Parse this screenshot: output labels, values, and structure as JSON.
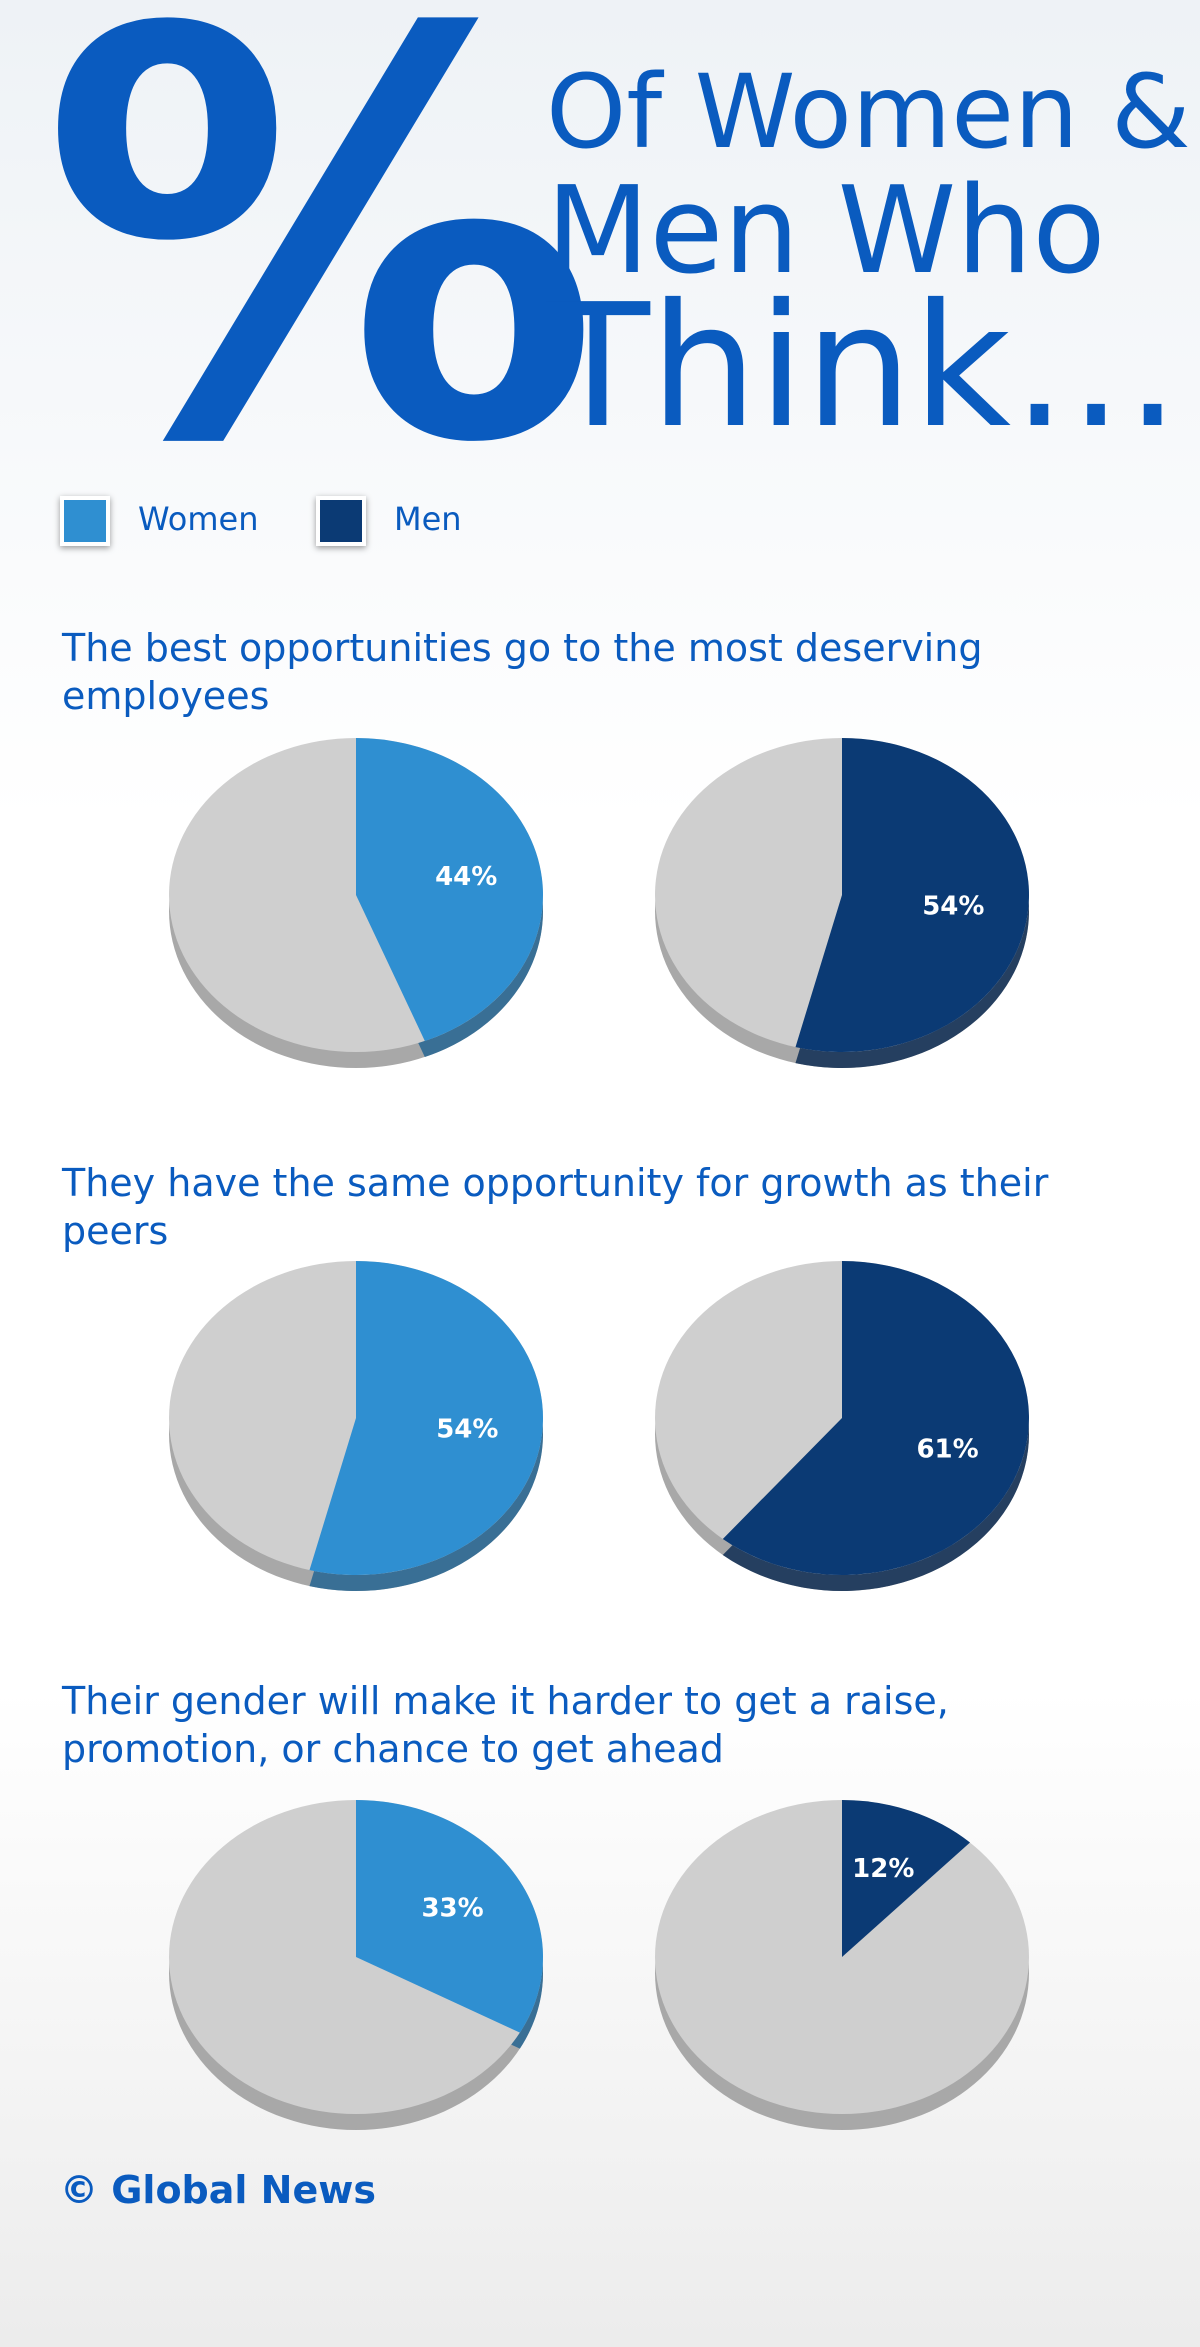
{
  "header": {
    "symbol": "%",
    "lines": [
      "Of Women &",
      "Men Who",
      "Think…"
    ]
  },
  "legend": [
    {
      "name": "Women",
      "color": "#2f8fd1"
    },
    {
      "name": "Men",
      "color": "#0b3a74"
    }
  ],
  "chart_data": [
    {
      "type": "pie",
      "title": "The best opportunities go to the most deserving employees",
      "values": [
        44,
        54
      ],
      "value_labels": [
        "44%",
        "54%"
      ]
    },
    {
      "type": "pie",
      "title": "They have the same opportunity for growth as their peers",
      "values": [
        54,
        61
      ],
      "value_labels": [
        "54%",
        "61%"
      ]
    },
    {
      "type": "pie",
      "title": "Their gender will make it harder to get a raise, promotion, or chance to get ahead",
      "values": [
        33,
        12
      ],
      "value_labels": [
        "33%",
        "12%"
      ]
    }
  ],
  "footer": "© Global News"
}
